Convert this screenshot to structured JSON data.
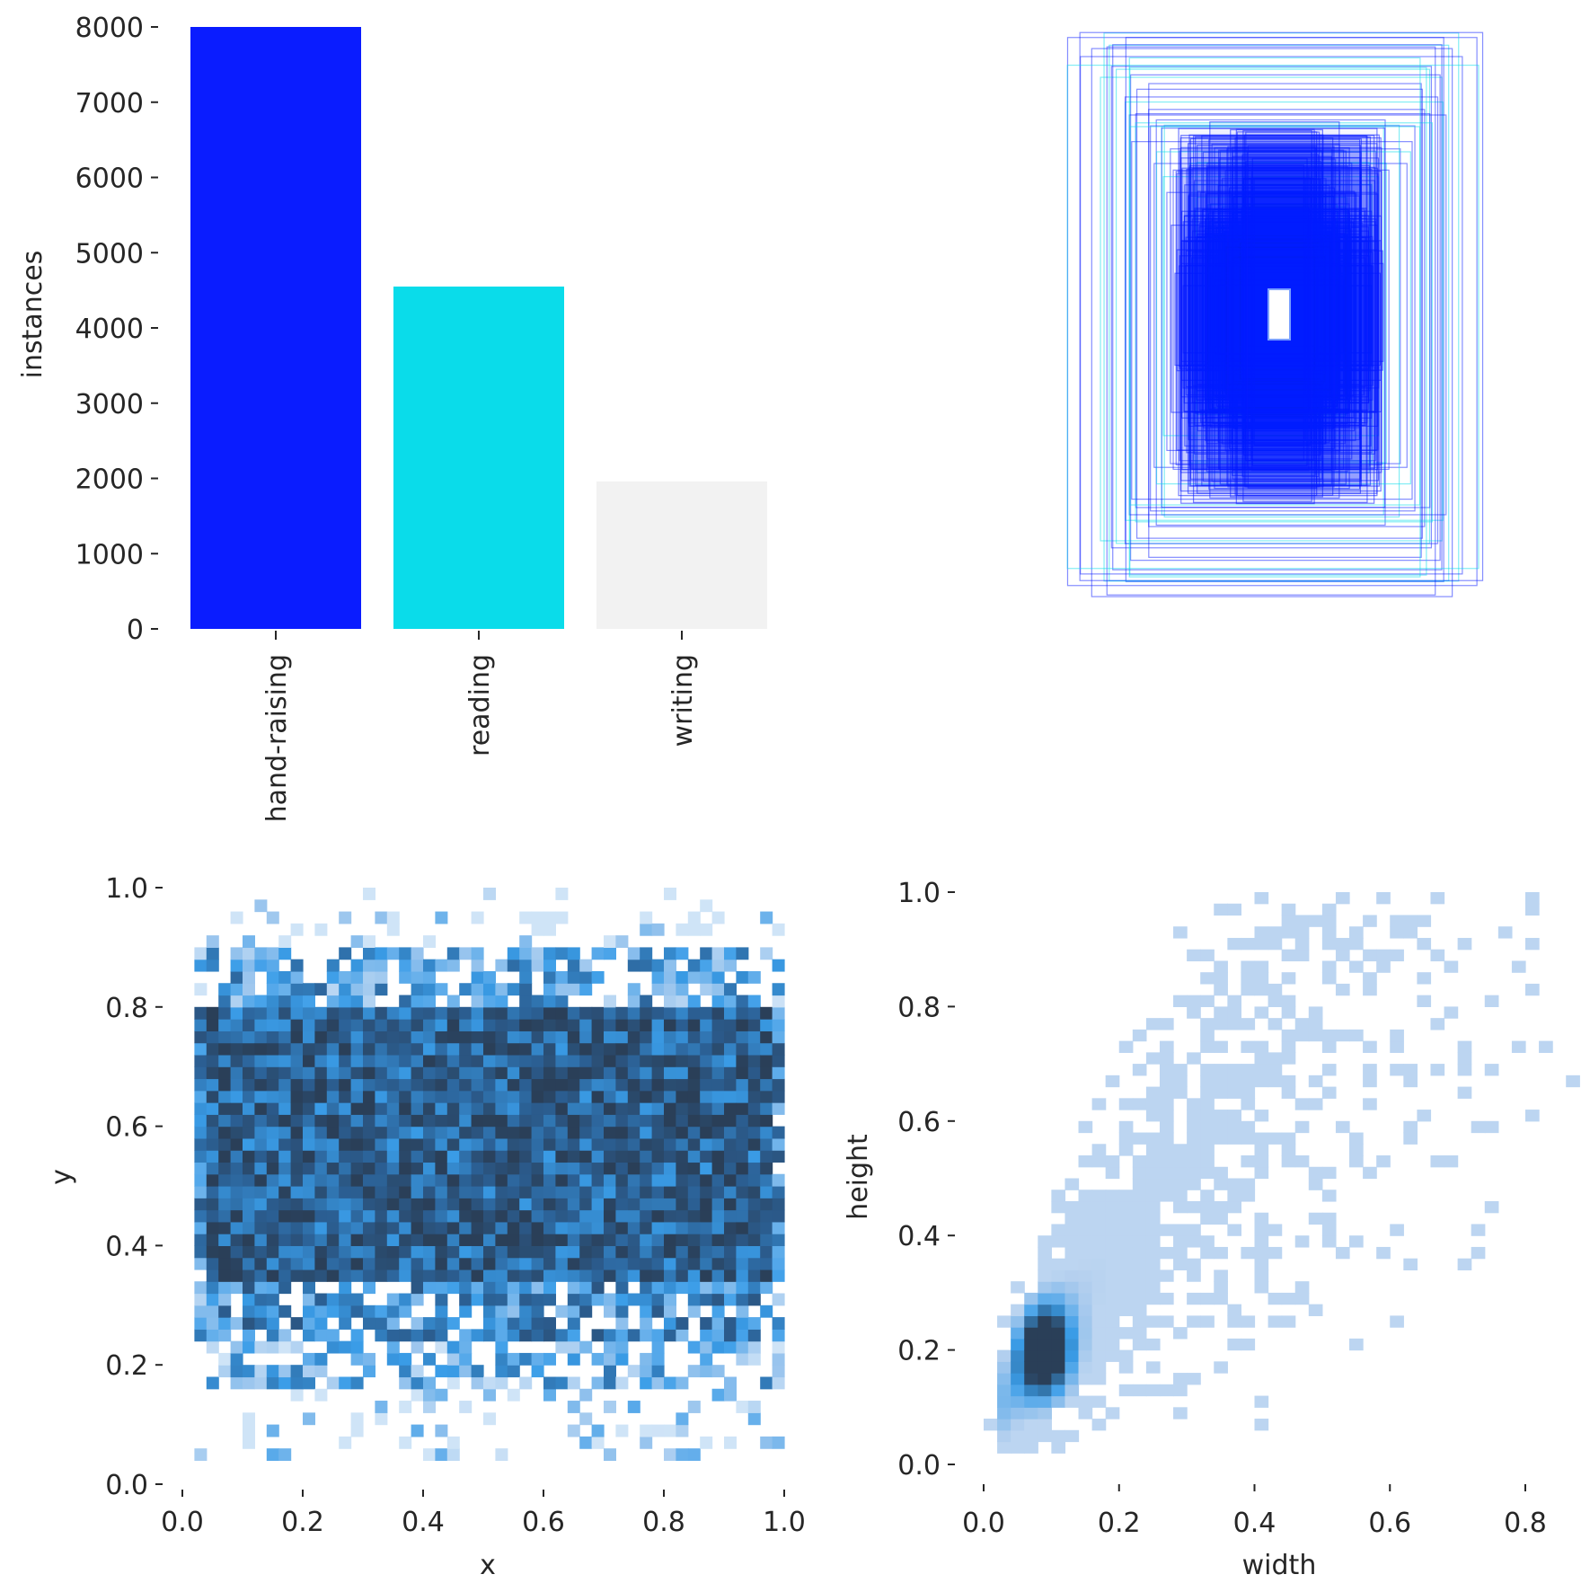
{
  "chart_data": [
    {
      "type": "bar",
      "categories": [
        "hand-raising",
        "reading",
        "writing"
      ],
      "values": [
        8000,
        4550,
        1960
      ],
      "colors": [
        "#0a1cff",
        "#0adcea",
        "#f2f2f2"
      ],
      "ylabel": "instances",
      "xlabel": "",
      "ylim": [
        0,
        8000
      ],
      "yticks": [
        0,
        1000,
        2000,
        3000,
        4000,
        5000,
        6000,
        7000,
        8000
      ],
      "ytick_labels": [
        "0",
        "1000",
        "2000",
        "3000",
        "4000",
        "5000",
        "6000",
        "7000",
        "8000"
      ],
      "grid": false
    },
    {
      "type": "box_overlay",
      "description_colors": [
        "#0a1cff",
        "#0adcea"
      ],
      "grid": false
    },
    {
      "type": "heatmap",
      "xlabel": "x",
      "ylabel": "y",
      "xlim": [
        0,
        1
      ],
      "ylim": [
        0,
        1
      ],
      "xticks": [
        0.0,
        0.2,
        0.4,
        0.6,
        0.8,
        1.0
      ],
      "xtick_labels": [
        "0.0",
        "0.2",
        "0.4",
        "0.6",
        "0.8",
        "1.0"
      ],
      "yticks": [
        0.0,
        0.2,
        0.4,
        0.6,
        0.8,
        1.0
      ],
      "ytick_labels": [
        "0.0",
        "0.2",
        "0.4",
        "0.6",
        "0.8",
        "1.0"
      ],
      "cmap": [
        "#ffffff",
        "#9cc6ee",
        "#3a9de8",
        "#2b5f93",
        "#2a3f58"
      ],
      "grid": false
    },
    {
      "type": "heatmap",
      "xlabel": "width",
      "ylabel": "height",
      "xlim": [
        0,
        0.85
      ],
      "ylim": [
        0,
        1
      ],
      "xticks": [
        0.0,
        0.2,
        0.4,
        0.6,
        0.8
      ],
      "xtick_labels": [
        "0.0",
        "0.2",
        "0.4",
        "0.6",
        "0.8"
      ],
      "yticks": [
        0.0,
        0.2,
        0.4,
        0.6,
        0.8,
        1.0
      ],
      "ytick_labels": [
        "0.0",
        "0.2",
        "0.4",
        "0.6",
        "0.8",
        "1.0"
      ],
      "cmap": [
        "#ffffff",
        "#afcdee",
        "#3a9de8",
        "#2a3f58"
      ],
      "grid": false
    }
  ]
}
